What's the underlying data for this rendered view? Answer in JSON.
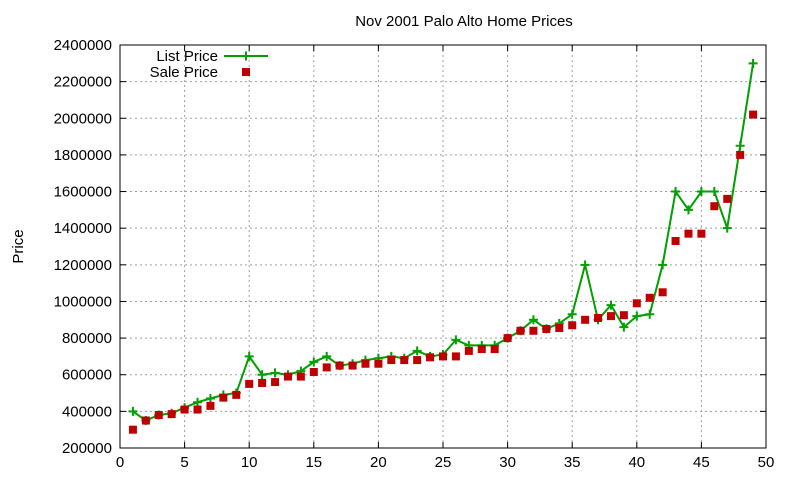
{
  "chart_data": {
    "type": "line",
    "title": "Nov 2001 Palo Alto Home Prices",
    "xlabel": "",
    "ylabel": "Price",
    "xlim": [
      0,
      50
    ],
    "ylim": [
      200000,
      2400000
    ],
    "x_ticks": [
      0,
      5,
      10,
      15,
      20,
      25,
      30,
      35,
      40,
      45,
      50
    ],
    "y_ticks": [
      200000,
      400000,
      600000,
      800000,
      1000000,
      1200000,
      1400000,
      1600000,
      1800000,
      2000000,
      2200000,
      2400000
    ],
    "grid": true,
    "legend_position": "top-left",
    "series": [
      {
        "name": "List Price",
        "style": "line-with-plus-markers",
        "color": "#00a000",
        "x": [
          1,
          2,
          3,
          4,
          5,
          6,
          7,
          8,
          9,
          10,
          11,
          12,
          13,
          14,
          15,
          16,
          17,
          18,
          19,
          20,
          21,
          22,
          23,
          24,
          25,
          26,
          27,
          28,
          29,
          30,
          31,
          32,
          33,
          34,
          35,
          36,
          37,
          38,
          39,
          40,
          41,
          42,
          43,
          44,
          45,
          46,
          47,
          48,
          49
        ],
        "values": [
          400000,
          350000,
          380000,
          390000,
          420000,
          450000,
          470000,
          490000,
          500000,
          700000,
          600000,
          610000,
          600000,
          620000,
          670000,
          700000,
          650000,
          660000,
          680000,
          690000,
          700000,
          690000,
          730000,
          700000,
          710000,
          790000,
          760000,
          760000,
          760000,
          800000,
          840000,
          900000,
          850000,
          880000,
          930000,
          1200000,
          900000,
          980000,
          860000,
          920000,
          930000,
          1200000,
          1600000,
          1500000,
          1600000,
          1600000,
          1400000,
          1850000,
          2300000
        ]
      },
      {
        "name": "Sale Price",
        "style": "squares",
        "color": "#c00000",
        "x": [
          1,
          2,
          3,
          4,
          5,
          6,
          7,
          8,
          9,
          10,
          11,
          12,
          13,
          14,
          15,
          16,
          17,
          18,
          19,
          20,
          21,
          22,
          23,
          24,
          25,
          26,
          27,
          28,
          29,
          30,
          31,
          32,
          33,
          34,
          35,
          36,
          37,
          38,
          39,
          40,
          41,
          42,
          43,
          44,
          45,
          46,
          47,
          48,
          49
        ],
        "values": [
          300000,
          350000,
          380000,
          385000,
          410000,
          410000,
          430000,
          475000,
          490000,
          550000,
          555000,
          560000,
          590000,
          590000,
          615000,
          640000,
          650000,
          650000,
          660000,
          660000,
          680000,
          680000,
          680000,
          695000,
          700000,
          700000,
          730000,
          740000,
          740000,
          800000,
          840000,
          840000,
          850000,
          855000,
          870000,
          900000,
          910000,
          920000,
          925000,
          990000,
          1020000,
          1050000,
          1330000,
          1370000,
          1370000,
          1520000,
          1560000,
          1800000,
          2020000
        ]
      }
    ]
  }
}
